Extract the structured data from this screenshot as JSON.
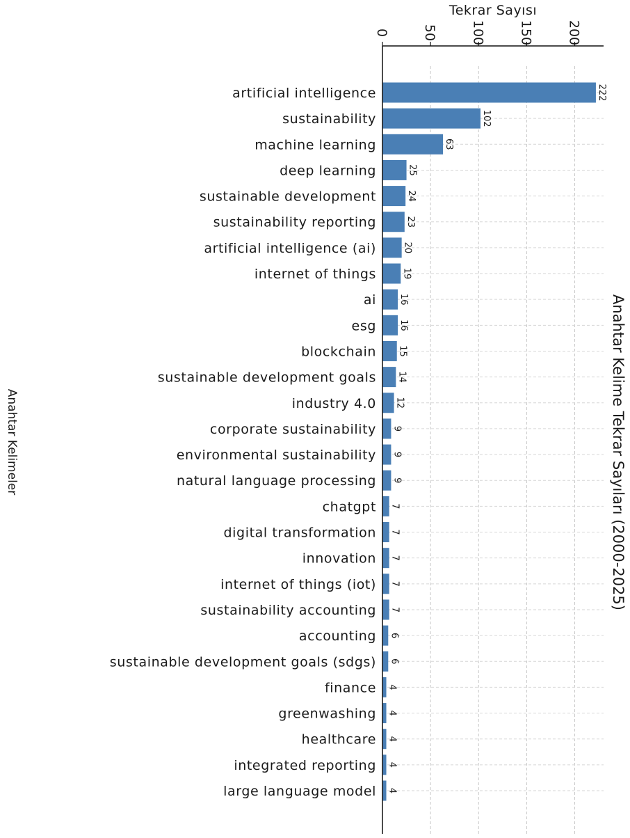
{
  "chart_data": {
    "type": "bar",
    "orientation": "horizontal",
    "title": "Anahtar Kelime Tekrar Sayıları (2000-2025)",
    "xlabel": "Tekrar Sayısı",
    "ylabel": "Anahtar Kelimeler",
    "xlim": [
      0,
      230
    ],
    "xticks": [
      0,
      50,
      100,
      150,
      200
    ],
    "grid": true,
    "bar_color": "#4a7fb5",
    "categories": [
      "artificial intelligence",
      "sustainability",
      "machine learning",
      "deep learning",
      "sustainable development",
      "sustainability reporting",
      "artificial intelligence (ai)",
      "internet of things",
      "ai",
      "esg",
      "blockchain",
      "sustainable development goals",
      "industry 4.0",
      "corporate sustainability",
      "environmental sustainability",
      "natural language processing",
      "chatgpt",
      "digital transformation",
      "innovation",
      "internet of things (iot)",
      "sustainability accounting",
      "accounting",
      "sustainable development goals (sdgs)",
      "finance",
      "greenwashing",
      "healthcare",
      "integrated reporting",
      "large language model"
    ],
    "values": [
      222,
      102,
      63,
      25,
      24,
      23,
      20,
      19,
      16,
      16,
      15,
      14,
      12,
      9,
      9,
      9,
      7,
      7,
      7,
      7,
      7,
      6,
      6,
      4,
      4,
      4,
      4,
      4
    ]
  }
}
